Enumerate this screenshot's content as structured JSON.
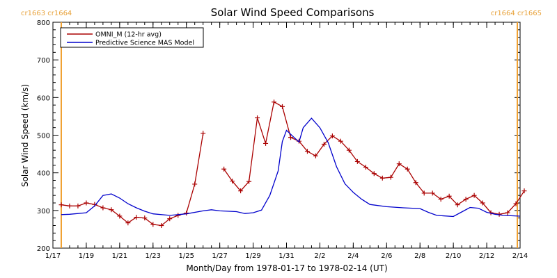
{
  "chart_data": {
    "type": "line",
    "title": "Solar Wind Speed Comparisons",
    "xlabel": "Month/Day from 1978-01-17 to 1978-02-14 (UT)",
    "ylabel": "Solar Wind Speed (km/s)",
    "xlim": [
      "1978-01-17",
      "1978-02-14"
    ],
    "ylim": [
      200,
      800
    ],
    "x_ticks": [
      {
        "date": "1978-01-17",
        "label": "1/17"
      },
      {
        "date": "1978-01-19",
        "label": "1/19"
      },
      {
        "date": "1978-01-21",
        "label": "1/21"
      },
      {
        "date": "1978-01-23",
        "label": "1/23"
      },
      {
        "date": "1978-01-25",
        "label": "1/25"
      },
      {
        "date": "1978-01-27",
        "label": "1/27"
      },
      {
        "date": "1978-01-29",
        "label": "1/29"
      },
      {
        "date": "1978-01-31",
        "label": "1/31"
      },
      {
        "date": "1978-02-02",
        "label": "2/2"
      },
      {
        "date": "1978-02-04",
        "label": "2/4"
      },
      {
        "date": "1978-02-06",
        "label": "2/6"
      },
      {
        "date": "1978-02-08",
        "label": "2/8"
      },
      {
        "date": "1978-02-10",
        "label": "2/10"
      },
      {
        "date": "1978-02-12",
        "label": "2/12"
      },
      {
        "date": "1978-02-14",
        "label": "2/14"
      }
    ],
    "y_ticks": [
      200,
      300,
      400,
      500,
      600,
      700,
      800
    ],
    "legend_position": "top-left",
    "carrington_markers": [
      {
        "date": "1978-01-17 12:00",
        "label": "cr1663 cr1664",
        "side": "left"
      },
      {
        "date": "1978-02-13 20:00",
        "label": "cr1664 cr1665",
        "side": "right"
      }
    ],
    "series": [
      {
        "name": "OMNI_M (12-hr avg)",
        "color": "#aa0000",
        "marker": "plus",
        "segments": [
          [
            [
              "1978-01-17 12:00",
              315
            ],
            [
              "1978-01-18 00:00",
              312
            ],
            [
              "1978-01-18 12:00",
              312
            ],
            [
              "1978-01-19 00:00",
              320
            ],
            [
              "1978-01-19 12:00",
              316
            ],
            [
              "1978-01-20 00:00",
              307
            ],
            [
              "1978-01-20 12:00",
              302
            ],
            [
              "1978-01-21 00:00",
              285
            ],
            [
              "1978-01-21 12:00",
              267
            ],
            [
              "1978-01-22 00:00",
              282
            ],
            [
              "1978-01-22 12:00",
              280
            ],
            [
              "1978-01-23 00:00",
              263
            ],
            [
              "1978-01-23 12:00",
              260
            ],
            [
              "1978-01-24 00:00",
              278
            ],
            [
              "1978-01-24 12:00",
              287
            ],
            [
              "1978-01-25 00:00",
              293
            ],
            [
              "1978-01-25 12:00",
              370
            ],
            [
              "1978-01-26 00:00",
              505
            ]
          ],
          [
            [
              "1978-01-27 06:00",
              410
            ],
            [
              "1978-01-27 18:00",
              378
            ],
            [
              "1978-01-28 06:00",
              352
            ],
            [
              "1978-01-28 18:00",
              377
            ],
            [
              "1978-01-29 06:00",
              546
            ],
            [
              "1978-01-29 18:00",
              478
            ],
            [
              "1978-01-30 06:00",
              588
            ],
            [
              "1978-01-30 18:00",
              576
            ],
            [
              "1978-01-31 06:00",
              494
            ],
            [
              "1978-01-31 18:00",
              484
            ],
            [
              "1978-02-01 06:00",
              457
            ],
            [
              "1978-02-01 18:00",
              445
            ],
            [
              "1978-02-02 06:00",
              476
            ],
            [
              "1978-02-02 18:00",
              498
            ],
            [
              "1978-02-03 06:00",
              484
            ],
            [
              "1978-02-03 18:00",
              460
            ],
            [
              "1978-02-04 06:00",
              430
            ],
            [
              "1978-02-04 18:00",
              415
            ],
            [
              "1978-02-05 06:00",
              398
            ],
            [
              "1978-02-05 18:00",
              386
            ],
            [
              "1978-02-06 06:00",
              388
            ],
            [
              "1978-02-06 18:00",
              424
            ],
            [
              "1978-02-07 06:00",
              410
            ],
            [
              "1978-02-07 18:00",
              374
            ],
            [
              "1978-02-08 06:00",
              346
            ],
            [
              "1978-02-08 18:00",
              346
            ],
            [
              "1978-02-09 06:00",
              330
            ],
            [
              "1978-02-09 18:00",
              338
            ],
            [
              "1978-02-10 06:00",
              315
            ],
            [
              "1978-02-10 18:00",
              330
            ],
            [
              "1978-02-11 06:00",
              340
            ],
            [
              "1978-02-11 18:00",
              320
            ],
            [
              "1978-02-12 06:00",
              294
            ],
            [
              "1978-02-12 18:00",
              290
            ],
            [
              "1978-02-13 06:00",
              294
            ],
            [
              "1978-02-13 18:00",
              318
            ],
            [
              "1978-02-14 06:00",
              352
            ]
          ]
        ]
      },
      {
        "name": "Predictive Science MAS Model",
        "color": "#0000cc",
        "marker": "none",
        "points": [
          [
            "1978-01-17 12:00",
            289
          ],
          [
            "1978-01-18 00:00",
            290
          ],
          [
            "1978-01-19 00:00",
            294
          ],
          [
            "1978-01-19 12:00",
            312
          ],
          [
            "1978-01-20 00:00",
            340
          ],
          [
            "1978-01-20 12:00",
            344
          ],
          [
            "1978-01-21 00:00",
            333
          ],
          [
            "1978-01-21 12:00",
            318
          ],
          [
            "1978-01-22 00:00",
            307
          ],
          [
            "1978-01-22 12:00",
            298
          ],
          [
            "1978-01-23 00:00",
            291
          ],
          [
            "1978-01-24 00:00",
            287
          ],
          [
            "1978-01-25 00:00",
            291
          ],
          [
            "1978-01-26 00:00",
            299
          ],
          [
            "1978-01-26 12:00",
            302
          ],
          [
            "1978-01-27 00:00",
            299
          ],
          [
            "1978-01-28 00:00",
            297
          ],
          [
            "1978-01-28 12:00",
            292
          ],
          [
            "1978-01-29 00:00",
            294
          ],
          [
            "1978-01-29 12:00",
            301
          ],
          [
            "1978-01-30 00:00",
            340
          ],
          [
            "1978-01-30 12:00",
            405
          ],
          [
            "1978-01-30 18:00",
            483
          ],
          [
            "1978-01-31 00:00",
            513
          ],
          [
            "1978-01-31 12:00",
            492
          ],
          [
            "1978-01-31 18:00",
            482
          ],
          [
            "1978-02-01 00:00",
            520
          ],
          [
            "1978-02-01 12:00",
            545
          ],
          [
            "1978-02-02 00:00",
            520
          ],
          [
            "1978-02-02 12:00",
            480
          ],
          [
            "1978-02-03 00:00",
            416
          ],
          [
            "1978-02-03 12:00",
            371
          ],
          [
            "1978-02-04 00:00",
            348
          ],
          [
            "1978-02-04 12:00",
            330
          ],
          [
            "1978-02-05 00:00",
            316
          ],
          [
            "1978-02-06 00:00",
            310
          ],
          [
            "1978-02-07 00:00",
            307
          ],
          [
            "1978-02-08 00:00",
            305
          ],
          [
            "1978-02-08 12:00",
            295
          ],
          [
            "1978-02-09 00:00",
            287
          ],
          [
            "1978-02-10 00:00",
            284
          ],
          [
            "1978-02-10 12:00",
            296
          ],
          [
            "1978-02-11 00:00",
            308
          ],
          [
            "1978-02-11 12:00",
            306
          ],
          [
            "1978-02-12 00:00",
            295
          ],
          [
            "1978-02-12 12:00",
            290
          ],
          [
            "1978-02-13 00:00",
            287
          ],
          [
            "1978-02-14 00:00",
            285
          ]
        ]
      }
    ]
  }
}
